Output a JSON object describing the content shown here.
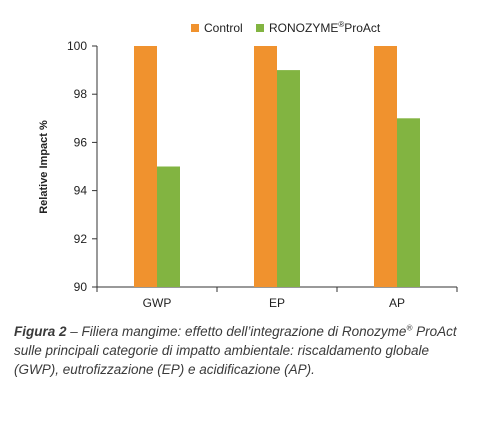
{
  "chart_data": {
    "type": "bar",
    "categories": [
      "GWP",
      "EP",
      "AP"
    ],
    "series": [
      {
        "name": "Control",
        "color": "#f0922e",
        "values": [
          100,
          100,
          100
        ]
      },
      {
        "name": "RONOZYME",
        "name_sup": "®",
        "name_suffix": "ProAct",
        "color": "#82b441",
        "values": [
          95,
          99,
          97
        ]
      }
    ],
    "ylabel": "Relative Impact %",
    "ylim": [
      90,
      100
    ],
    "yticks": [
      90,
      92,
      94,
      96,
      98,
      100
    ],
    "grid": false,
    "legend_position": "top"
  },
  "caption": {
    "label": "Figura 2",
    "dash": " – ",
    "text_1": "Filiera mangime: effetto dell’integrazione di Ronozyme",
    "sup": "®",
    "text_2": " ProAct sulle principali categorie di impatto ambientale: riscaldamento globale (GWP), eutrofizzazione (EP) e acidificazione (AP)."
  }
}
